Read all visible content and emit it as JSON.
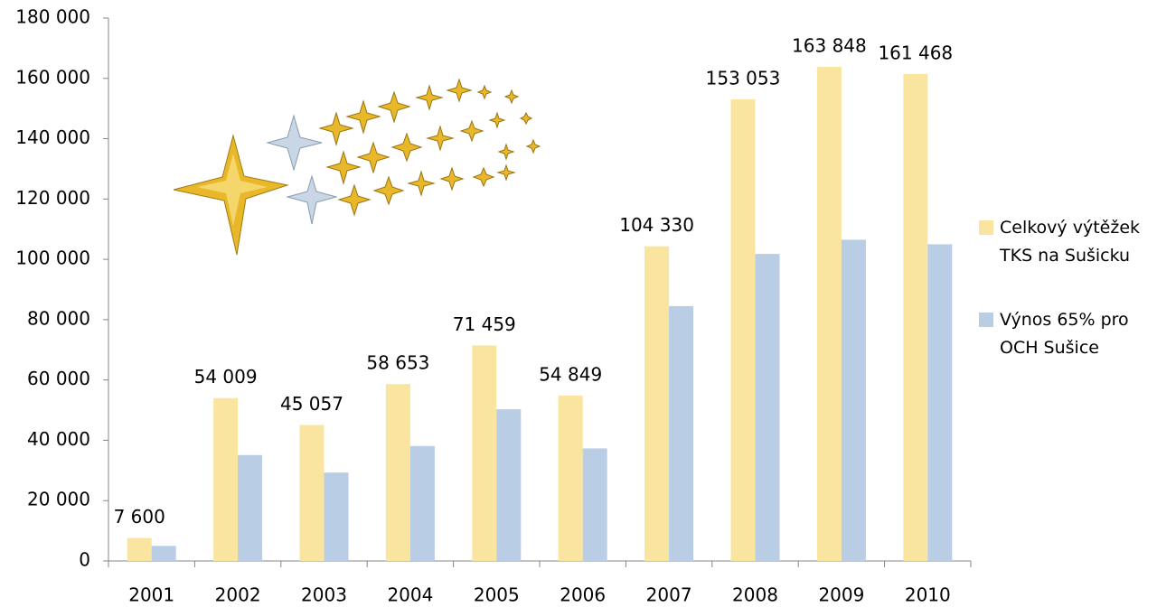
{
  "chart_data": {
    "type": "bar",
    "categories": [
      "2001",
      "2002",
      "2003",
      "2004",
      "2005",
      "2006",
      "2007",
      "2008",
      "2009",
      "2010"
    ],
    "series": [
      {
        "name": "Celkový výtěžek TKS na Sušicku",
        "color": "#fae5a0",
        "values": [
          7600,
          54009,
          45057,
          58653,
          71459,
          54849,
          104330,
          153053,
          163848,
          161468
        ],
        "value_labels": [
          "7 600",
          "54 009",
          "45 057",
          "58 653",
          "71 459",
          "54 849",
          "104 330",
          "153 053",
          "163 848",
          "161 468"
        ]
      },
      {
        "name": "Výnos 65% pro OCH Sušice",
        "color": "#b9cde5",
        "values": [
          5000,
          35100,
          29300,
          38100,
          50300,
          37300,
          84500,
          101800,
          106500,
          105000
        ]
      }
    ],
    "ylim": [
      0,
      180000
    ],
    "yticks": [
      0,
      {
        "value": 20000,
        "label": "20 000"
      },
      {
        "value": 40000,
        "label": "40 000"
      },
      {
        "value": 60000,
        "label": "60 000"
      },
      {
        "value": 80000,
        "label": "80 000"
      },
      {
        "value": 100000,
        "label": "100 000"
      },
      {
        "value": 120000,
        "label": "120 000"
      },
      {
        "value": 140000,
        "label": "140 000"
      },
      {
        "value": 160000,
        "label": "160 000"
      },
      {
        "value": 180000,
        "label": "180 000"
      }
    ],
    "legend": "right"
  }
}
